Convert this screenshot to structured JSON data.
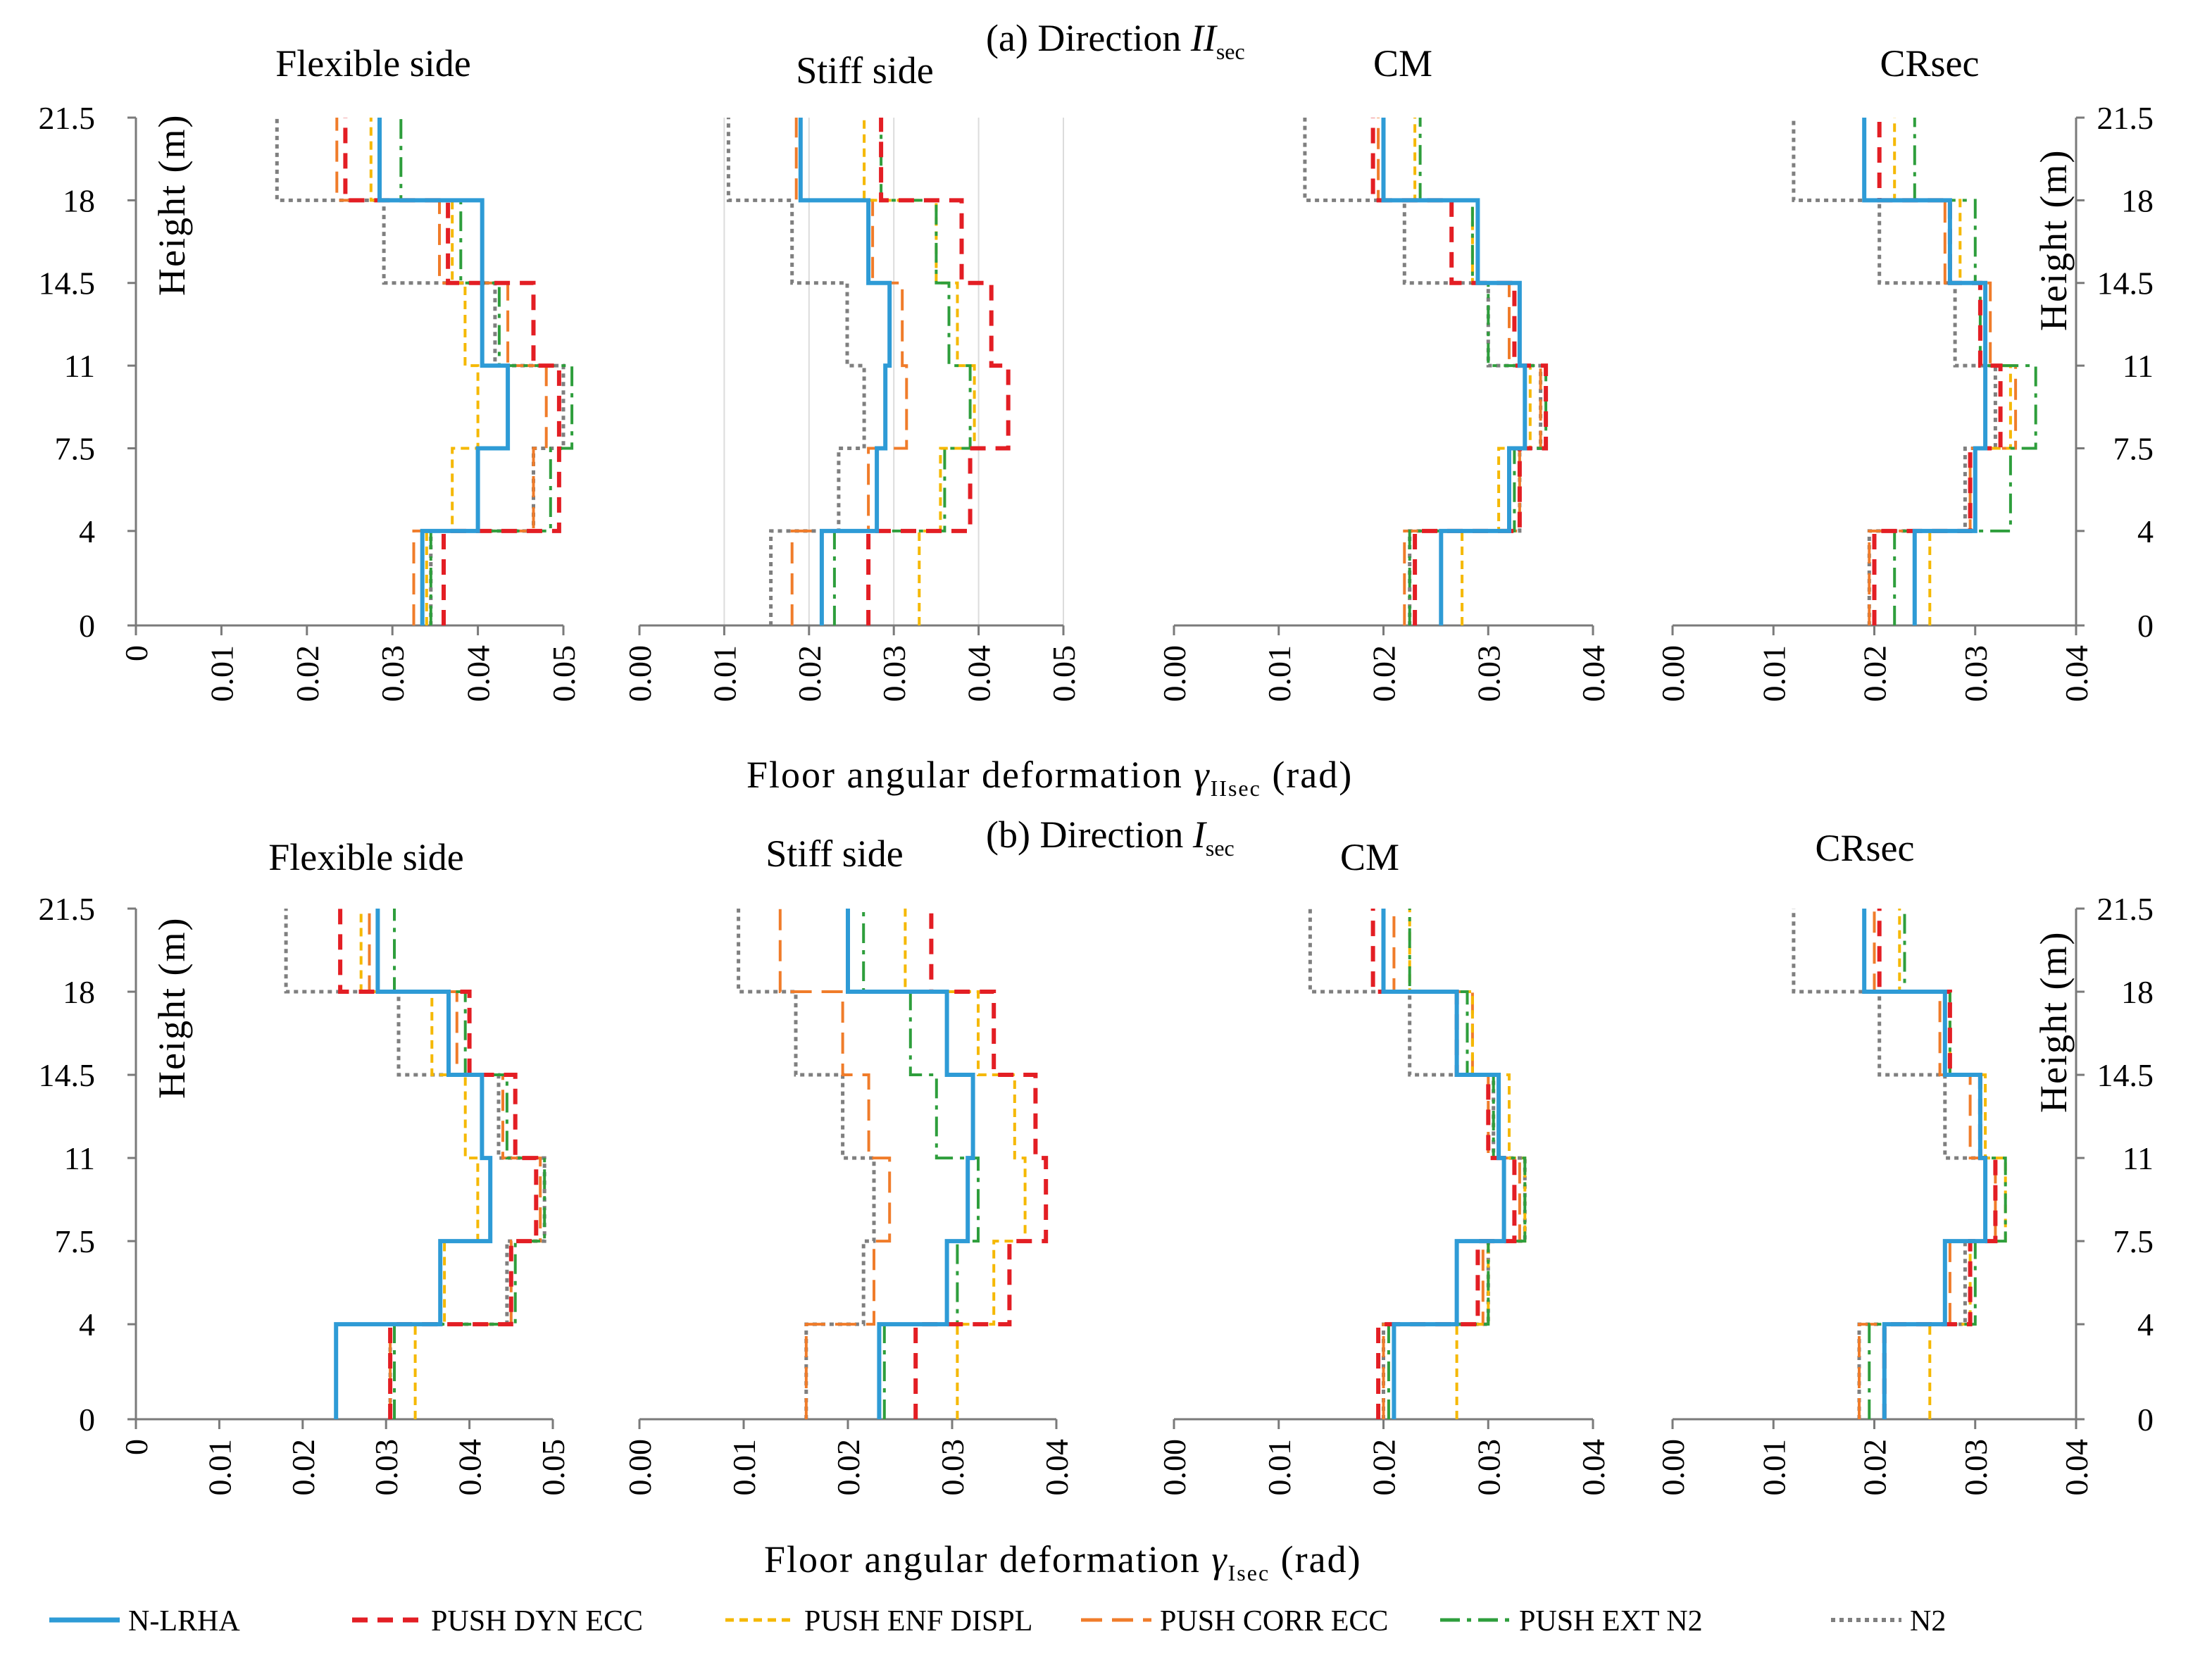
{
  "series_styles": [
    {
      "key": "nlrha",
      "name": "N-LRHA",
      "color": "#2E9BD6",
      "dash": "",
      "width": 6
    },
    {
      "key": "dyn",
      "name": "PUSH DYN ECC",
      "color": "#E31E24",
      "dash": "22,14",
      "width": 6
    },
    {
      "key": "enf",
      "name": "PUSH ENF DISPL",
      "color": "#F5B800",
      "dash": "12,8",
      "width": 4
    },
    {
      "key": "corr",
      "name": "PUSH CORR ECC",
      "color": "#F07C2A",
      "dash": "30,14",
      "width": 4
    },
    {
      "key": "ext",
      "name": "PUSH EXT N2",
      "color": "#2E9E3C",
      "dash": "28,10,6,10",
      "width": 4
    },
    {
      "key": "n2",
      "name": "N2",
      "color": "#7F7F7F",
      "dash": "6,6",
      "width": 5
    }
  ],
  "text": {
    "dir_a_prefix": "(a) Direction ",
    "dir_a_sym": "II",
    "dir_a_sub": "sec",
    "dir_b_prefix": "(b) Direction ",
    "dir_b_sym": "I",
    "dir_b_sub": "sec",
    "xlabel_a_prefix": "Floor angular deformation ",
    "xlabel_a_sym": "γ",
    "xlabel_a_sub": "IIsec",
    "xlabel_a_suffix": " (rad)",
    "xlabel_b_prefix": "Floor angular deformation ",
    "xlabel_b_sym": "γ",
    "xlabel_b_sub": "Isec",
    "xlabel_b_suffix": " (rad)",
    "ylabel": "Height (m)"
  },
  "chart_data": [
    {
      "type": "line",
      "title": "Flexible side",
      "direction": "a",
      "xlim": [
        0,
        0.05
      ],
      "xticks": [
        "0",
        "0.01",
        "0.02",
        "0.03",
        "0.04",
        "0.05"
      ],
      "yticks": [
        "21.5",
        "18",
        "14.5",
        "11",
        "7.5",
        "4",
        "0"
      ],
      "story_edges": [
        0,
        4,
        7.5,
        11,
        14.5,
        18,
        21.5
      ],
      "series": [
        {
          "key": "nlrha",
          "values": [
            0.0335,
            0.04,
            0.0435,
            0.0405,
            0.0405,
            0.0285
          ]
        },
        {
          "key": "dyn",
          "values": [
            0.036,
            0.0495,
            0.0495,
            0.0465,
            0.0365,
            0.0245
          ]
        },
        {
          "key": "enf",
          "values": [
            0.034,
            0.037,
            0.04,
            0.0385,
            0.037,
            0.0275
          ]
        },
        {
          "key": "corr",
          "values": [
            0.0325,
            0.0465,
            0.048,
            0.0435,
            0.0355,
            0.0235
          ]
        },
        {
          "key": "ext",
          "values": [
            0.0345,
            0.0485,
            0.051,
            0.0425,
            0.038,
            0.031
          ]
        },
        {
          "key": "n2",
          "values": [
            0.0345,
            0.0465,
            0.05,
            0.042,
            0.029,
            0.0165
          ]
        }
      ]
    },
    {
      "type": "line",
      "title": "Stiff side",
      "direction": "a",
      "xlim": [
        0,
        0.05
      ],
      "xticks": [
        "0.00",
        "0.01",
        "0.02",
        "0.03",
        "0.04",
        "0.05"
      ],
      "yticks": [],
      "story_edges": [
        0,
        4,
        7.5,
        11,
        14.5,
        18,
        21.5
      ],
      "series": [
        {
          "key": "nlrha",
          "values": [
            0.0215,
            0.028,
            0.029,
            0.0295,
            0.027,
            0.019
          ]
        },
        {
          "key": "dyn",
          "values": [
            0.027,
            0.039,
            0.0435,
            0.0415,
            0.038,
            0.0285
          ]
        },
        {
          "key": "enf",
          "values": [
            0.033,
            0.0355,
            0.0395,
            0.0375,
            0.035,
            0.0265
          ]
        },
        {
          "key": "corr",
          "values": [
            0.018,
            0.027,
            0.0315,
            0.031,
            0.0275,
            0.0185
          ]
        },
        {
          "key": "ext",
          "values": [
            0.023,
            0.036,
            0.039,
            0.0365,
            0.035,
            0.0285
          ]
        },
        {
          "key": "n2",
          "values": [
            0.0155,
            0.0235,
            0.0265,
            0.0245,
            0.018,
            0.0105
          ]
        }
      ]
    },
    {
      "type": "line",
      "title": "CM",
      "direction": "a",
      "xlim": [
        0,
        0.04
      ],
      "xticks": [
        "0.00",
        "0.01",
        "0.02",
        "0.03",
        "0.04"
      ],
      "yticks": [],
      "story_edges": [
        0,
        4,
        7.5,
        11,
        14.5,
        18,
        21.5
      ],
      "series": [
        {
          "key": "nlrha",
          "values": [
            0.0255,
            0.032,
            0.0335,
            0.033,
            0.029,
            0.02
          ]
        },
        {
          "key": "dyn",
          "values": [
            0.023,
            0.033,
            0.0355,
            0.0325,
            0.0265,
            0.019
          ]
        },
        {
          "key": "enf",
          "values": [
            0.0275,
            0.031,
            0.034,
            0.033,
            0.0285,
            0.023
          ]
        },
        {
          "key": "corr",
          "values": [
            0.022,
            0.033,
            0.035,
            0.032,
            0.029,
            0.0195
          ]
        },
        {
          "key": "ext",
          "values": [
            0.0225,
            0.0325,
            0.0355,
            0.03,
            0.0285,
            0.0235
          ]
        },
        {
          "key": "n2",
          "values": [
            0.0225,
            0.033,
            0.035,
            0.03,
            0.022,
            0.0125
          ]
        }
      ]
    },
    {
      "type": "line",
      "title": "CRsec",
      "direction": "a",
      "xlim": [
        0,
        0.04
      ],
      "xticks": [
        "0.00",
        "0.01",
        "0.02",
        "0.03",
        "0.04"
      ],
      "yticks": [
        "21.5",
        "18",
        "14.5",
        "11",
        "7.5",
        "4",
        "0"
      ],
      "story_edges": [
        0,
        4,
        7.5,
        11,
        14.5,
        18,
        21.5
      ],
      "series": [
        {
          "key": "nlrha",
          "values": [
            0.024,
            0.03,
            0.031,
            0.031,
            0.0275,
            0.019
          ]
        },
        {
          "key": "dyn",
          "values": [
            0.02,
            0.0295,
            0.0325,
            0.0305,
            0.0275,
            0.0205
          ]
        },
        {
          "key": "enf",
          "values": [
            0.0255,
            0.03,
            0.0335,
            0.031,
            0.0285,
            0.022
          ]
        },
        {
          "key": "corr",
          "values": [
            0.0195,
            0.0295,
            0.034,
            0.0315,
            0.027,
            0.019
          ]
        },
        {
          "key": "ext",
          "values": [
            0.022,
            0.0335,
            0.036,
            0.0305,
            0.03,
            0.024
          ]
        },
        {
          "key": "n2",
          "values": [
            0.0195,
            0.029,
            0.032,
            0.028,
            0.0205,
            0.012
          ]
        }
      ]
    },
    {
      "type": "line",
      "title": "Flexible side",
      "direction": "b",
      "xlim": [
        0,
        0.05
      ],
      "xticks": [
        "0",
        "0.01",
        "0.02",
        "0.03",
        "0.04",
        "0.05"
      ],
      "yticks": [
        "21.5",
        "18",
        "14.5",
        "11",
        "7.5",
        "4",
        "0"
      ],
      "story_edges": [
        0,
        4,
        7.5,
        11,
        14.5,
        18,
        21.5
      ],
      "series": [
        {
          "key": "nlrha",
          "values": [
            0.024,
            0.0365,
            0.0425,
            0.0415,
            0.0375,
            0.029
          ]
        },
        {
          "key": "dyn",
          "values": [
            0.0305,
            0.045,
            0.048,
            0.0455,
            0.04,
            0.0245
          ]
        },
        {
          "key": "enf",
          "values": [
            0.0335,
            0.037,
            0.041,
            0.0395,
            0.0355,
            0.027
          ]
        },
        {
          "key": "corr",
          "values": [
            0.0305,
            0.045,
            0.0485,
            0.044,
            0.0385,
            0.028
          ]
        },
        {
          "key": "ext",
          "values": [
            0.031,
            0.0455,
            0.049,
            0.0445,
            0.0395,
            0.031
          ]
        },
        {
          "key": "n2",
          "values": [
            0.0305,
            0.0445,
            0.049,
            0.0435,
            0.0315,
            0.018
          ]
        }
      ]
    },
    {
      "type": "line",
      "title": "Stiff side",
      "direction": "b",
      "xlim": [
        0,
        0.04
      ],
      "xticks": [
        "0.00",
        "0.01",
        "0.02",
        "0.03",
        "0.04"
      ],
      "yticks": [],
      "story_edges": [
        0,
        4,
        7.5,
        11,
        14.5,
        18,
        21.5
      ],
      "series": [
        {
          "key": "nlrha",
          "values": [
            0.023,
            0.0295,
            0.0315,
            0.032,
            0.0295,
            0.02
          ]
        },
        {
          "key": "dyn",
          "values": [
            0.0265,
            0.0355,
            0.039,
            0.038,
            0.034,
            0.028
          ]
        },
        {
          "key": "enf",
          "values": [
            0.0305,
            0.034,
            0.037,
            0.036,
            0.0325,
            0.0255
          ]
        },
        {
          "key": "corr",
          "values": [
            0.016,
            0.0225,
            0.024,
            0.022,
            0.0195,
            0.0135
          ]
        },
        {
          "key": "ext",
          "values": [
            0.0235,
            0.0305,
            0.0325,
            0.0285,
            0.026,
            0.0215
          ]
        },
        {
          "key": "n2",
          "values": [
            0.016,
            0.0215,
            0.0225,
            0.0195,
            0.015,
            0.0095
          ]
        }
      ]
    },
    {
      "type": "line",
      "title": "CM",
      "direction": "b",
      "xlim": [
        0,
        0.04
      ],
      "xticks": [
        "0.00",
        "0.01",
        "0.02",
        "0.03",
        "0.04"
      ],
      "yticks": [],
      "story_edges": [
        0,
        4,
        7.5,
        11,
        14.5,
        18,
        21.5
      ],
      "series": [
        {
          "key": "nlrha",
          "values": [
            0.021,
            0.027,
            0.0315,
            0.031,
            0.027,
            0.02
          ]
        },
        {
          "key": "dyn",
          "values": [
            0.0195,
            0.029,
            0.0325,
            0.03,
            0.027,
            0.019
          ]
        },
        {
          "key": "enf",
          "values": [
            0.027,
            0.03,
            0.0335,
            0.032,
            0.0285,
            0.0225
          ]
        },
        {
          "key": "corr",
          "values": [
            0.02,
            0.0295,
            0.033,
            0.03,
            0.0285,
            0.021
          ]
        },
        {
          "key": "ext",
          "values": [
            0.0205,
            0.03,
            0.0335,
            0.0305,
            0.028,
            0.0225
          ]
        },
        {
          "key": "n2",
          "values": [
            0.02,
            0.03,
            0.0335,
            0.0305,
            0.0225,
            0.013
          ]
        }
      ]
    },
    {
      "type": "line",
      "title": "CRsec",
      "direction": "b",
      "xlim": [
        0,
        0.04
      ],
      "xticks": [
        "0.00",
        "0.01",
        "0.02",
        "0.03",
        "0.04"
      ],
      "yticks": [
        "21.5",
        "18",
        "14.5",
        "11",
        "7.5",
        "4",
        "0"
      ],
      "story_edges": [
        0,
        4,
        7.5,
        11,
        14.5,
        18,
        21.5
      ],
      "series": [
        {
          "key": "nlrha",
          "values": [
            0.021,
            0.027,
            0.031,
            0.0305,
            0.027,
            0.019
          ]
        },
        {
          "key": "dyn",
          "values": [
            0.021,
            0.0295,
            0.032,
            0.0305,
            0.0275,
            0.0205
          ]
        },
        {
          "key": "enf",
          "values": [
            0.0255,
            0.0295,
            0.033,
            0.031,
            0.0275,
            0.0225
          ]
        },
        {
          "key": "corr",
          "values": [
            0.0185,
            0.0275,
            0.032,
            0.0295,
            0.0265,
            0.02
          ]
        },
        {
          "key": "ext",
          "values": [
            0.0195,
            0.03,
            0.033,
            0.0305,
            0.0275,
            0.023
          ]
        },
        {
          "key": "n2",
          "values": [
            0.0185,
            0.029,
            0.031,
            0.027,
            0.0205,
            0.012
          ]
        }
      ]
    }
  ]
}
